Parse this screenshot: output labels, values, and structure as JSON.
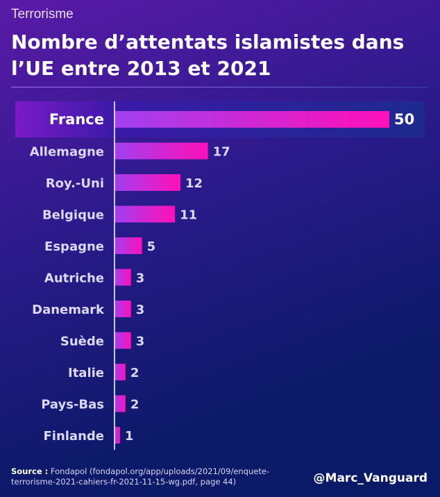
{
  "kicker": "Terrorisme",
  "title_line1": "Nombre d’attentats islamistes dans",
  "title_line2": "l’UE entre 2013 et 2021",
  "source_label": "Source :",
  "source_text": "Fondapol (fondapol.org/app/uploads/2021/09/enquete-terrorisme-2021-cahiers-fr-2021-11-15-wg.pdf, page 44)",
  "handle": "@Marc_Vanguard",
  "colors": {
    "bar_start": "#a040f0",
    "bar_end": "#ff10b8",
    "highlight_bg": "#2c1a9a",
    "axis": "#ffffff"
  },
  "chart_data": {
    "type": "bar",
    "orientation": "horizontal",
    "title": "Nombre d’attentats islamistes dans l’UE entre 2013 et 2021",
    "categories": [
      "France",
      "Allemagne",
      "Roy.-Uni",
      "Belgique",
      "Espagne",
      "Autriche",
      "Danemark",
      "Suède",
      "Italie",
      "Pays-Bas",
      "Finlande"
    ],
    "values": [
      50,
      17,
      12,
      11,
      5,
      3,
      3,
      3,
      2,
      2,
      1
    ],
    "highlight": "France",
    "xlim": [
      0,
      50
    ],
    "grid": false,
    "xlabel": "",
    "ylabel": ""
  }
}
